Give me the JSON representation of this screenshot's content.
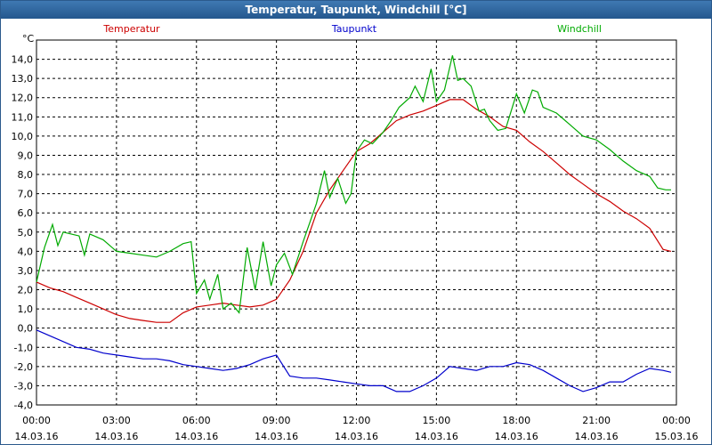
{
  "window": {
    "title": "Temperatur, Taupunkt, Windchill [°C]"
  },
  "colors": {
    "temperatur": "#cc0000",
    "taupunkt": "#0000cc",
    "windchill": "#00aa00",
    "grid": "#000000",
    "titlebar": "#24578d"
  },
  "chart_data": {
    "type": "line",
    "title": "Temperatur, Taupunkt, Windchill [°C]",
    "ylabel": "°C",
    "ylim": [
      -4.0,
      15.0
    ],
    "xlim": [
      0,
      24
    ],
    "grid": true,
    "legend_placement": "top",
    "y_ticks": [
      "14,0",
      "13,0",
      "12,0",
      "11,0",
      "10,0",
      "9,0",
      "8,0",
      "7,0",
      "6,0",
      "5,0",
      "4,0",
      "3,0",
      "2,0",
      "1,0",
      "0,0",
      "-1,0",
      "-2,0",
      "-3,0",
      "-4,0"
    ],
    "x_ticks": [
      {
        "time": "00:00",
        "date": "14.03.16"
      },
      {
        "time": "03:00",
        "date": "14.03.16"
      },
      {
        "time": "06:00",
        "date": "14.03.16"
      },
      {
        "time": "09:00",
        "date": "14.03.16"
      },
      {
        "time": "12:00",
        "date": "14.03.16"
      },
      {
        "time": "15:00",
        "date": "14.03.16"
      },
      {
        "time": "18:00",
        "date": "14.03.16"
      },
      {
        "time": "21:00",
        "date": "14.03.16"
      },
      {
        "time": "00:00",
        "date": "15.03.16"
      }
    ],
    "series": [
      {
        "name": "Temperatur",
        "color": "#cc0000",
        "x": [
          0,
          0.5,
          1.0,
          1.5,
          2.0,
          2.5,
          3.0,
          3.5,
          4.0,
          4.5,
          5.0,
          5.5,
          6.0,
          6.5,
          7.0,
          7.5,
          8.0,
          8.5,
          9.0,
          9.5,
          10.0,
          10.5,
          11.0,
          11.5,
          12.0,
          12.5,
          13.0,
          13.5,
          14.0,
          14.5,
          15.0,
          15.5,
          16.0,
          16.5,
          17.0,
          17.5,
          18.0,
          18.5,
          19.0,
          19.5,
          20.0,
          20.5,
          21.0,
          21.5,
          22.0,
          22.5,
          23.0,
          23.5,
          23.8
        ],
        "values": [
          2.4,
          2.1,
          1.9,
          1.6,
          1.3,
          1.0,
          0.7,
          0.5,
          0.4,
          0.3,
          0.3,
          0.8,
          1.1,
          1.2,
          1.3,
          1.2,
          1.1,
          1.2,
          1.5,
          2.5,
          4.0,
          6.0,
          7.2,
          8.2,
          9.2,
          9.6,
          10.2,
          10.8,
          11.1,
          11.3,
          11.6,
          11.9,
          11.9,
          11.4,
          11.0,
          10.5,
          10.3,
          9.7,
          9.2,
          8.6,
          8.0,
          7.5,
          7.0,
          6.6,
          6.1,
          5.7,
          5.2,
          4.1,
          4.0
        ]
      },
      {
        "name": "Taupunkt",
        "color": "#0000cc",
        "x": [
          0,
          0.5,
          1.0,
          1.5,
          2.0,
          2.5,
          3.0,
          3.5,
          4.0,
          4.5,
          5.0,
          5.5,
          6.0,
          6.5,
          7.0,
          7.5,
          8.0,
          8.5,
          9.0,
          9.5,
          10.0,
          10.5,
          11.0,
          11.5,
          12.0,
          12.5,
          13.0,
          13.5,
          14.0,
          14.5,
          15.0,
          15.5,
          16.0,
          16.5,
          17.0,
          17.5,
          18.0,
          18.5,
          19.0,
          19.5,
          20.0,
          20.5,
          21.0,
          21.5,
          22.0,
          22.5,
          23.0,
          23.5,
          23.8
        ],
        "values": [
          -0.1,
          -0.4,
          -0.7,
          -1.0,
          -1.1,
          -1.3,
          -1.4,
          -1.5,
          -1.6,
          -1.6,
          -1.7,
          -1.9,
          -2.0,
          -2.1,
          -2.2,
          -2.1,
          -1.9,
          -1.6,
          -1.4,
          -2.5,
          -2.6,
          -2.6,
          -2.7,
          -2.8,
          -2.9,
          -3.0,
          -3.0,
          -3.3,
          -3.3,
          -3.0,
          -2.6,
          -2.0,
          -2.1,
          -2.2,
          -2.0,
          -2.0,
          -1.8,
          -1.9,
          -2.2,
          -2.6,
          -3.0,
          -3.3,
          -3.1,
          -2.8,
          -2.8,
          -2.4,
          -2.1,
          -2.2,
          -2.3
        ]
      },
      {
        "name": "Windchill",
        "color": "#00aa00",
        "x": [
          0,
          0.3,
          0.6,
          0.8,
          1.0,
          1.3,
          1.6,
          1.8,
          2.0,
          2.5,
          3.0,
          3.5,
          4.0,
          4.5,
          5.0,
          5.5,
          5.8,
          6.0,
          6.3,
          6.5,
          6.8,
          7.0,
          7.3,
          7.6,
          7.9,
          8.2,
          8.5,
          8.8,
          9.0,
          9.3,
          9.6,
          10.0,
          10.5,
          10.8,
          11.0,
          11.3,
          11.6,
          11.8,
          12.0,
          12.3,
          12.6,
          13.0,
          13.3,
          13.6,
          14.0,
          14.2,
          14.5,
          14.8,
          15.0,
          15.3,
          15.6,
          15.8,
          16.0,
          16.3,
          16.6,
          16.8,
          17.0,
          17.3,
          17.6,
          18.0,
          18.3,
          18.6,
          18.8,
          19.0,
          19.5,
          20.0,
          20.5,
          21.0,
          21.5,
          22.0,
          22.5,
          23.0,
          23.3,
          23.6,
          23.8
        ],
        "values": [
          2.4,
          4.2,
          5.4,
          4.3,
          5.0,
          4.9,
          4.8,
          3.8,
          4.9,
          4.6,
          4.0,
          3.9,
          3.8,
          3.7,
          4.0,
          4.4,
          4.5,
          1.8,
          2.5,
          1.5,
          2.8,
          1.0,
          1.3,
          0.8,
          4.2,
          2.0,
          4.5,
          2.2,
          3.3,
          3.9,
          2.8,
          4.5,
          6.5,
          8.2,
          6.8,
          7.8,
          6.5,
          7.0,
          9.2,
          9.8,
          9.6,
          10.2,
          10.8,
          11.5,
          12.0,
          12.6,
          11.8,
          13.5,
          11.8,
          12.4,
          14.2,
          12.9,
          13.0,
          12.6,
          11.3,
          11.4,
          10.8,
          10.3,
          10.4,
          12.2,
          11.2,
          12.4,
          12.3,
          11.5,
          11.2,
          10.6,
          10.0,
          9.8,
          9.3,
          8.7,
          8.2,
          7.9,
          7.3,
          7.2,
          7.2
        ]
      }
    ]
  }
}
